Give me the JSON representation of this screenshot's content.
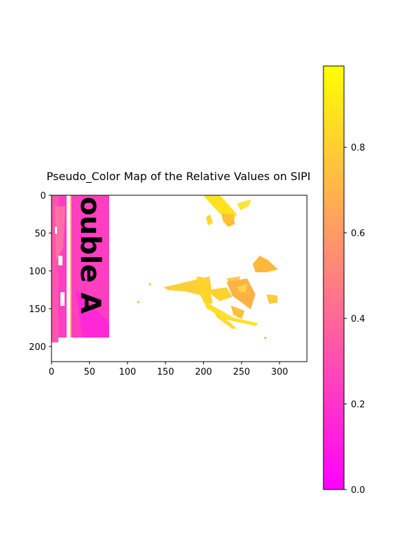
{
  "chart_data": {
    "type": "heatmap",
    "title": "Pseudo_Color Map of the Relative Values on SIPI",
    "xlabel": "",
    "ylabel": "",
    "colormap": "spring",
    "colormap_stops": [
      "#ff00ff",
      "#ffff00"
    ],
    "image_size": [
      336,
      220
    ],
    "xlim": [
      0,
      336
    ],
    "ylim": [
      220,
      0
    ],
    "x_ticks": [
      0,
      50,
      100,
      150,
      200,
      250,
      300
    ],
    "y_ticks": [
      0,
      50,
      100,
      150,
      200
    ],
    "colorbar": {
      "range": [
        0.0,
        0.99
      ],
      "ticks": [
        0.0,
        0.2,
        0.4,
        0.6,
        0.8
      ],
      "tick_labels": [
        "0.0",
        "0.2",
        "0.4",
        "0.6",
        "0.8"
      ]
    },
    "regions": [
      {
        "label": "sign-panel",
        "value": 0.25
      },
      {
        "label": "sign-left-strip",
        "value": 0.3
      },
      {
        "label": "petals-top",
        "value": 0.88
      },
      {
        "label": "petals-middle",
        "value": 0.85
      },
      {
        "label": "petals-right",
        "value": 0.78
      }
    ],
    "grid": false
  },
  "sign_text": "ouble A"
}
